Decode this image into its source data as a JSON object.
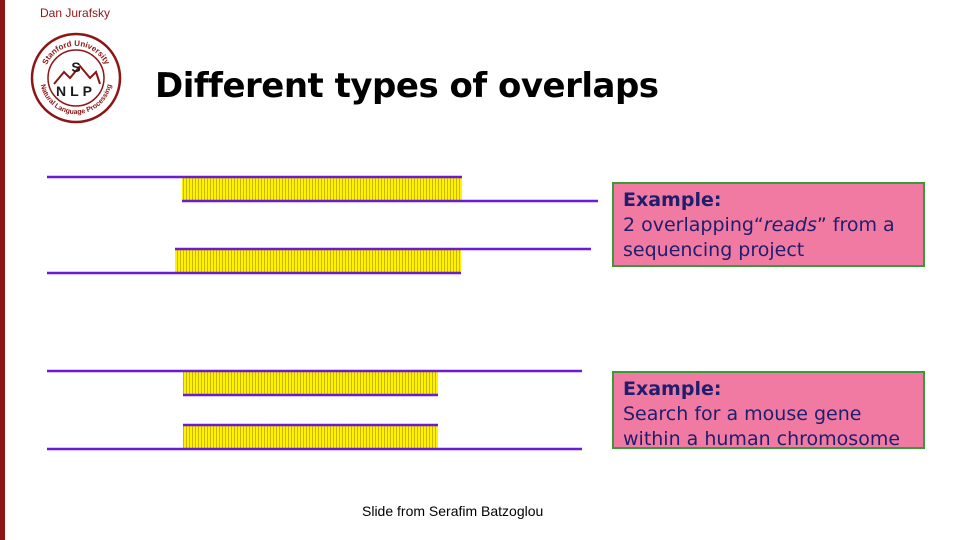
{
  "header": {
    "author": "Dan Jurafsky",
    "title": "Different types of overlaps"
  },
  "logo": {
    "ring_text_top": "Stanford University",
    "ring_text_bottom": "Natural Language Processing",
    "letters_top": "S",
    "letters_bottom": "NLP",
    "color": "#8c1515"
  },
  "examples": [
    {
      "heading": "Example:",
      "line1_pre": "2 overlapping“",
      "line1_em": "reads",
      "line1_post": "” from a",
      "line2": "sequencing project"
    },
    {
      "heading": "Example:",
      "line1": "Search for a mouse gene",
      "line2": "within a human chromosome"
    }
  ],
  "footer": {
    "credit": "Slide from Serafim Batzoglou"
  },
  "colors": {
    "line": "#6a1bd6",
    "overlap_fill": "#fff200",
    "overlap_hatch": "#c9b800",
    "box_fill": "#f07aa1",
    "box_border": "#3a9a3a",
    "box_text": "#1e1e6e"
  }
}
